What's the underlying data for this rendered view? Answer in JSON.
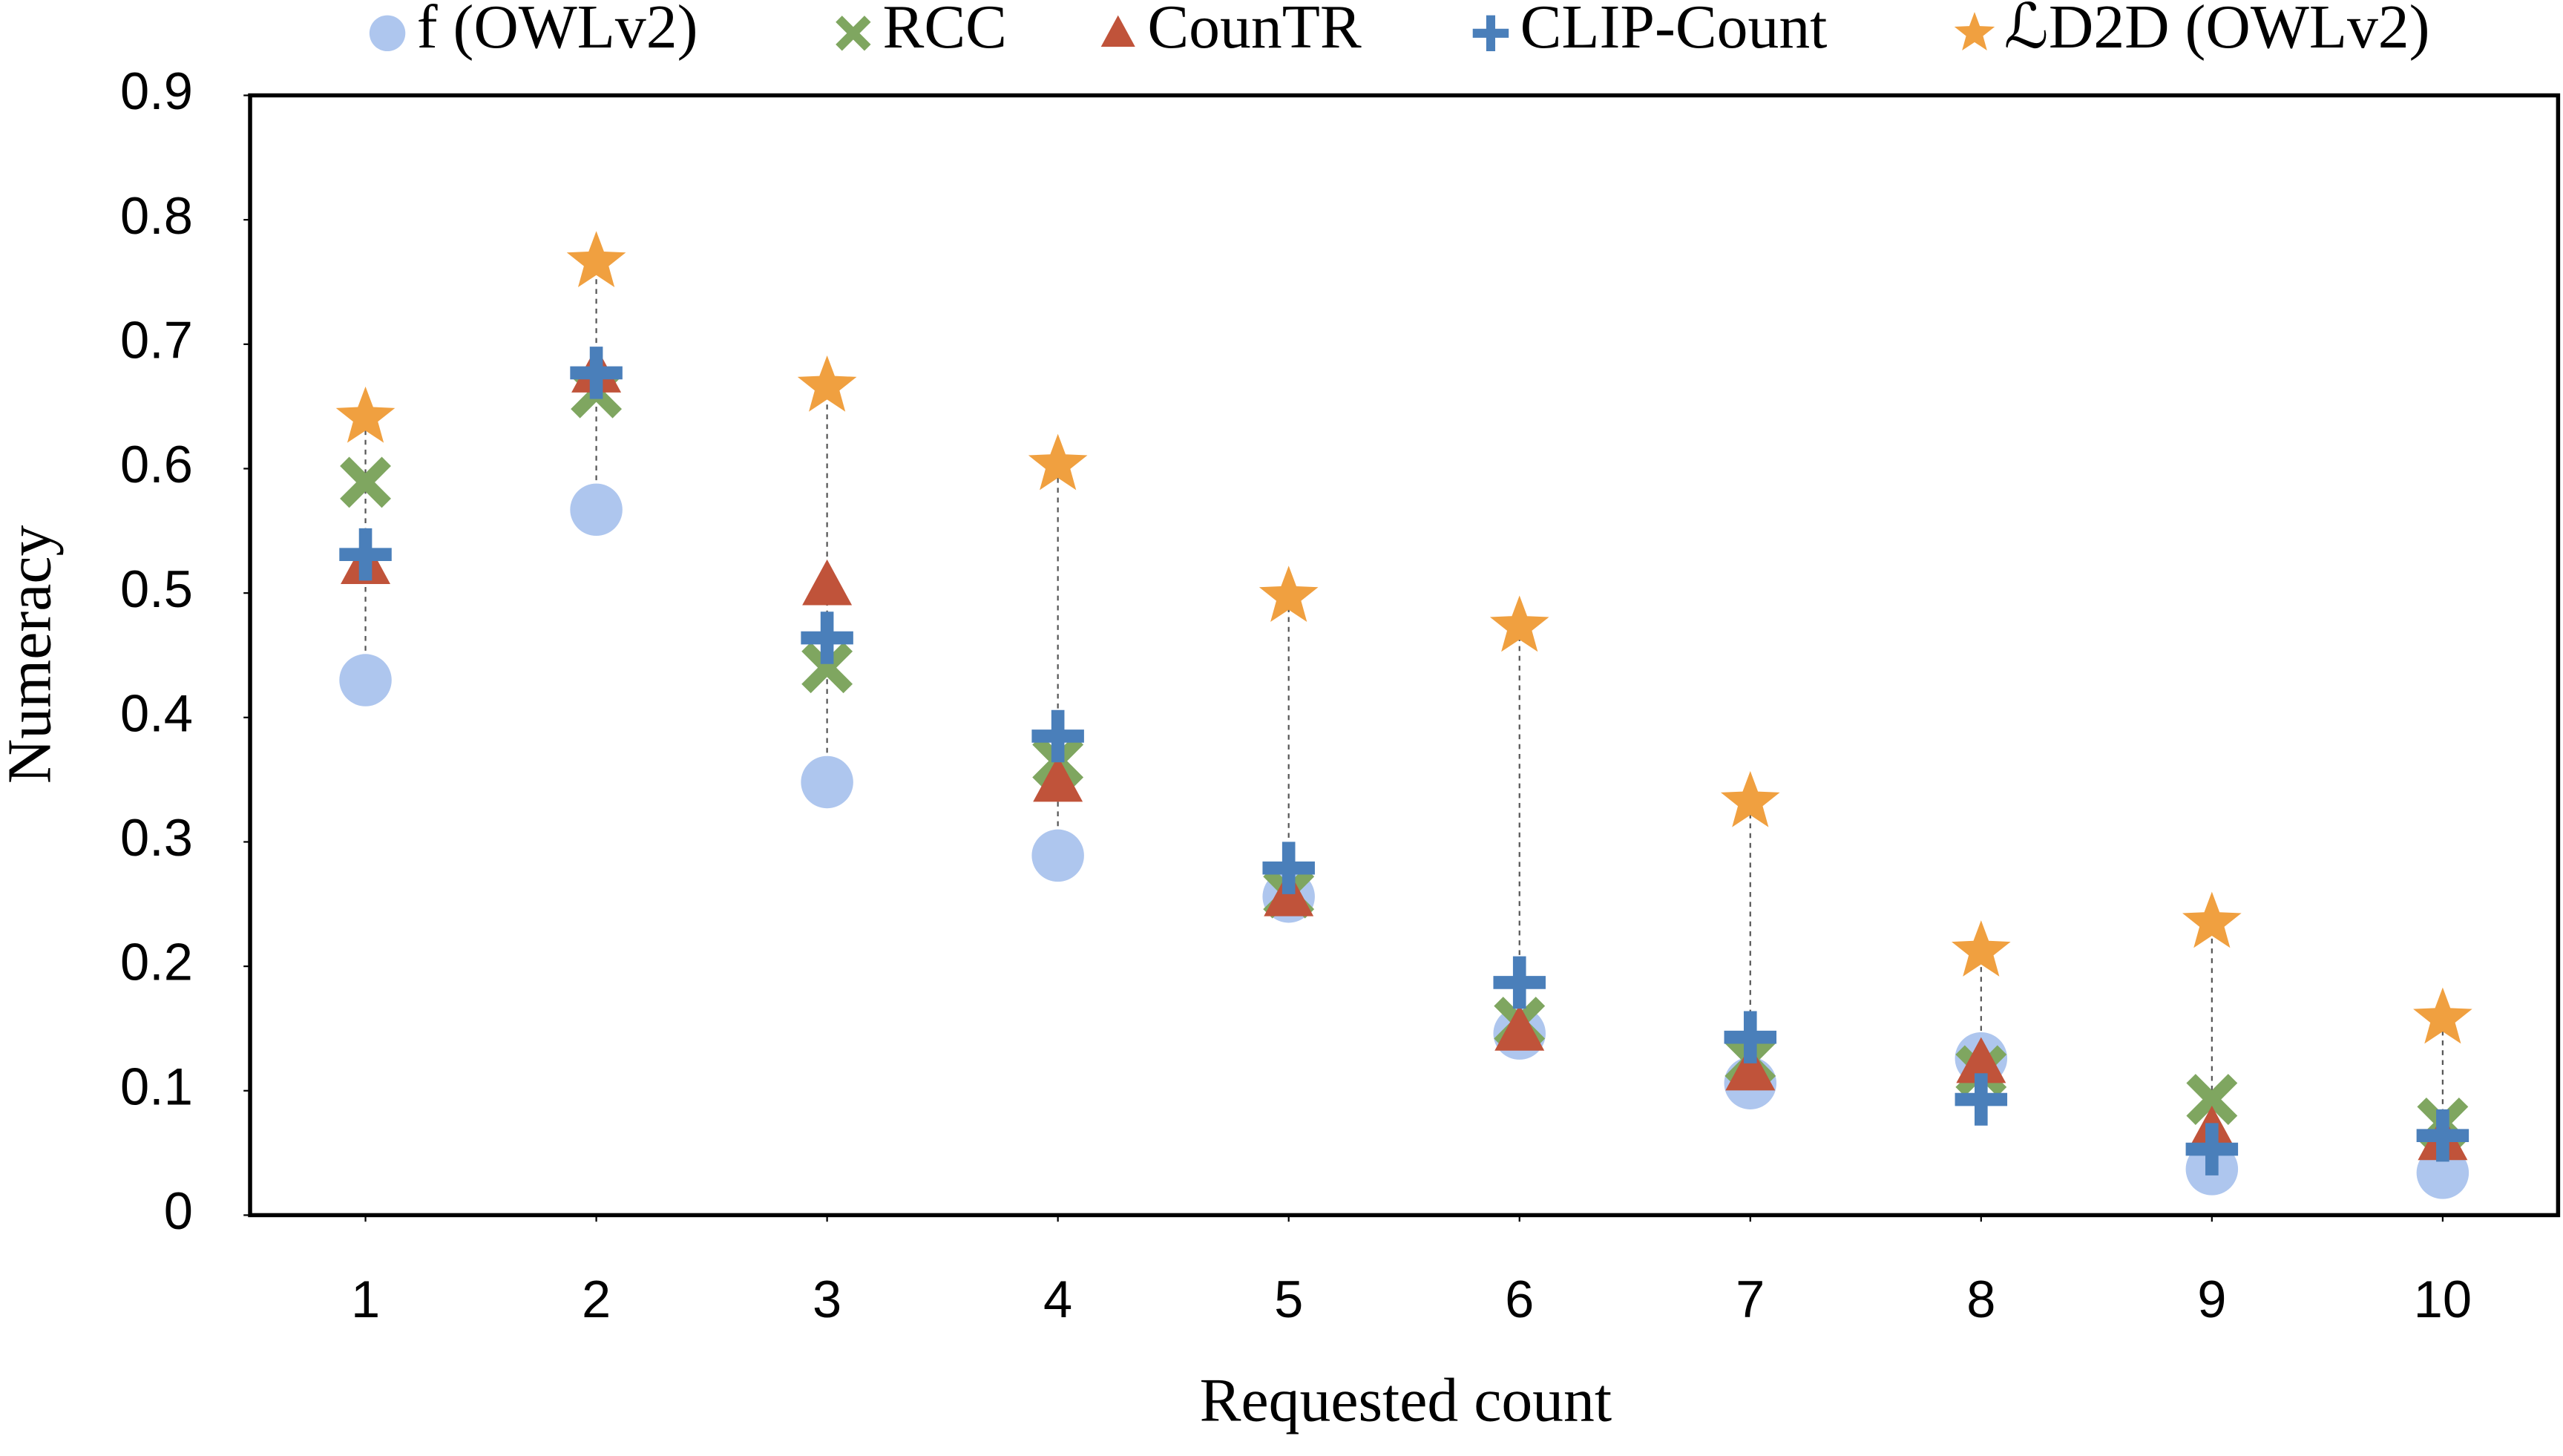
{
  "chart_data": {
    "type": "scatter",
    "x_label": "Requested count",
    "y_label": "Numeracy",
    "x": [
      1,
      2,
      3,
      4,
      5,
      6,
      7,
      8,
      9,
      10
    ],
    "xlim": [
      0.5,
      10.5
    ],
    "xticks": [
      1,
      2,
      3,
      4,
      5,
      6,
      7,
      8,
      9,
      10
    ],
    "ylim": [
      0,
      0.9
    ],
    "yticks": [
      0,
      0.1,
      0.2,
      0.3,
      0.4,
      0.5,
      0.6,
      0.7,
      0.8,
      0.9
    ],
    "grid": false,
    "legend": "top",
    "series": [
      {
        "name": "f (OWLv2)",
        "color": "#aec6ee",
        "marker": "circle",
        "values": [
          0.43,
          0.567,
          0.348,
          0.289,
          0.256,
          0.146,
          0.106,
          0.126,
          0.037,
          0.034
        ]
      },
      {
        "name": "RCC",
        "color": "#7fa660",
        "marker": "cross",
        "values": [
          0.589,
          0.661,
          0.44,
          0.365,
          0.259,
          0.155,
          0.125,
          0.116,
          0.093,
          0.074
        ]
      },
      {
        "name": "CounTR",
        "color": "#c0533a",
        "marker": "triangle",
        "values": [
          0.523,
          0.677,
          0.506,
          0.348,
          0.256,
          0.148,
          0.116,
          0.122,
          0.067,
          0.06
        ]
      },
      {
        "name": "CLIP-Count",
        "color": "#4a7fba",
        "marker": "plus",
        "values": [
          0.531,
          0.677,
          0.464,
          0.385,
          0.279,
          0.187,
          0.143,
          0.093,
          0.053,
          0.064
        ]
      },
      {
        "name": "ℒD2D (OWLv2)",
        "color": "#f0a040",
        "marker": "star",
        "values": [
          0.641,
          0.766,
          0.666,
          0.603,
          0.497,
          0.473,
          0.332,
          0.212,
          0.235,
          0.158
        ]
      }
    ]
  }
}
